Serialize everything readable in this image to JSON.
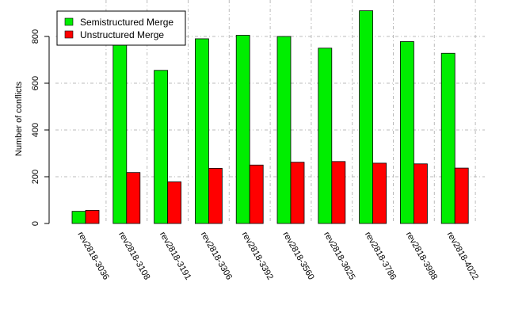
{
  "chart_data": {
    "type": "bar",
    "title": "",
    "xlabel": "",
    "ylabel": "Number of conflicts",
    "ylim": [
      0,
      900
    ],
    "yticks": [
      0,
      200,
      400,
      600,
      800
    ],
    "grid": true,
    "legend_position": "top-left",
    "categories": [
      "rev2818-3036",
      "rev2818-3108",
      "rev2818-3191",
      "rev2818-3306",
      "rev2818-3392",
      "rev2818-3560",
      "rev2818-3625",
      "rev2818-3786",
      "rev2818-3988",
      "rev2818-4022"
    ],
    "series": [
      {
        "name": "Semistructured Merge",
        "color": "#00ee00",
        "values": [
          52,
          770,
          655,
          790,
          805,
          800,
          750,
          910,
          778,
          728
        ]
      },
      {
        "name": "Unstructured Merge",
        "color": "#ff0000",
        "values": [
          56,
          218,
          178,
          236,
          250,
          262,
          265,
          258,
          255,
          237
        ]
      }
    ]
  }
}
